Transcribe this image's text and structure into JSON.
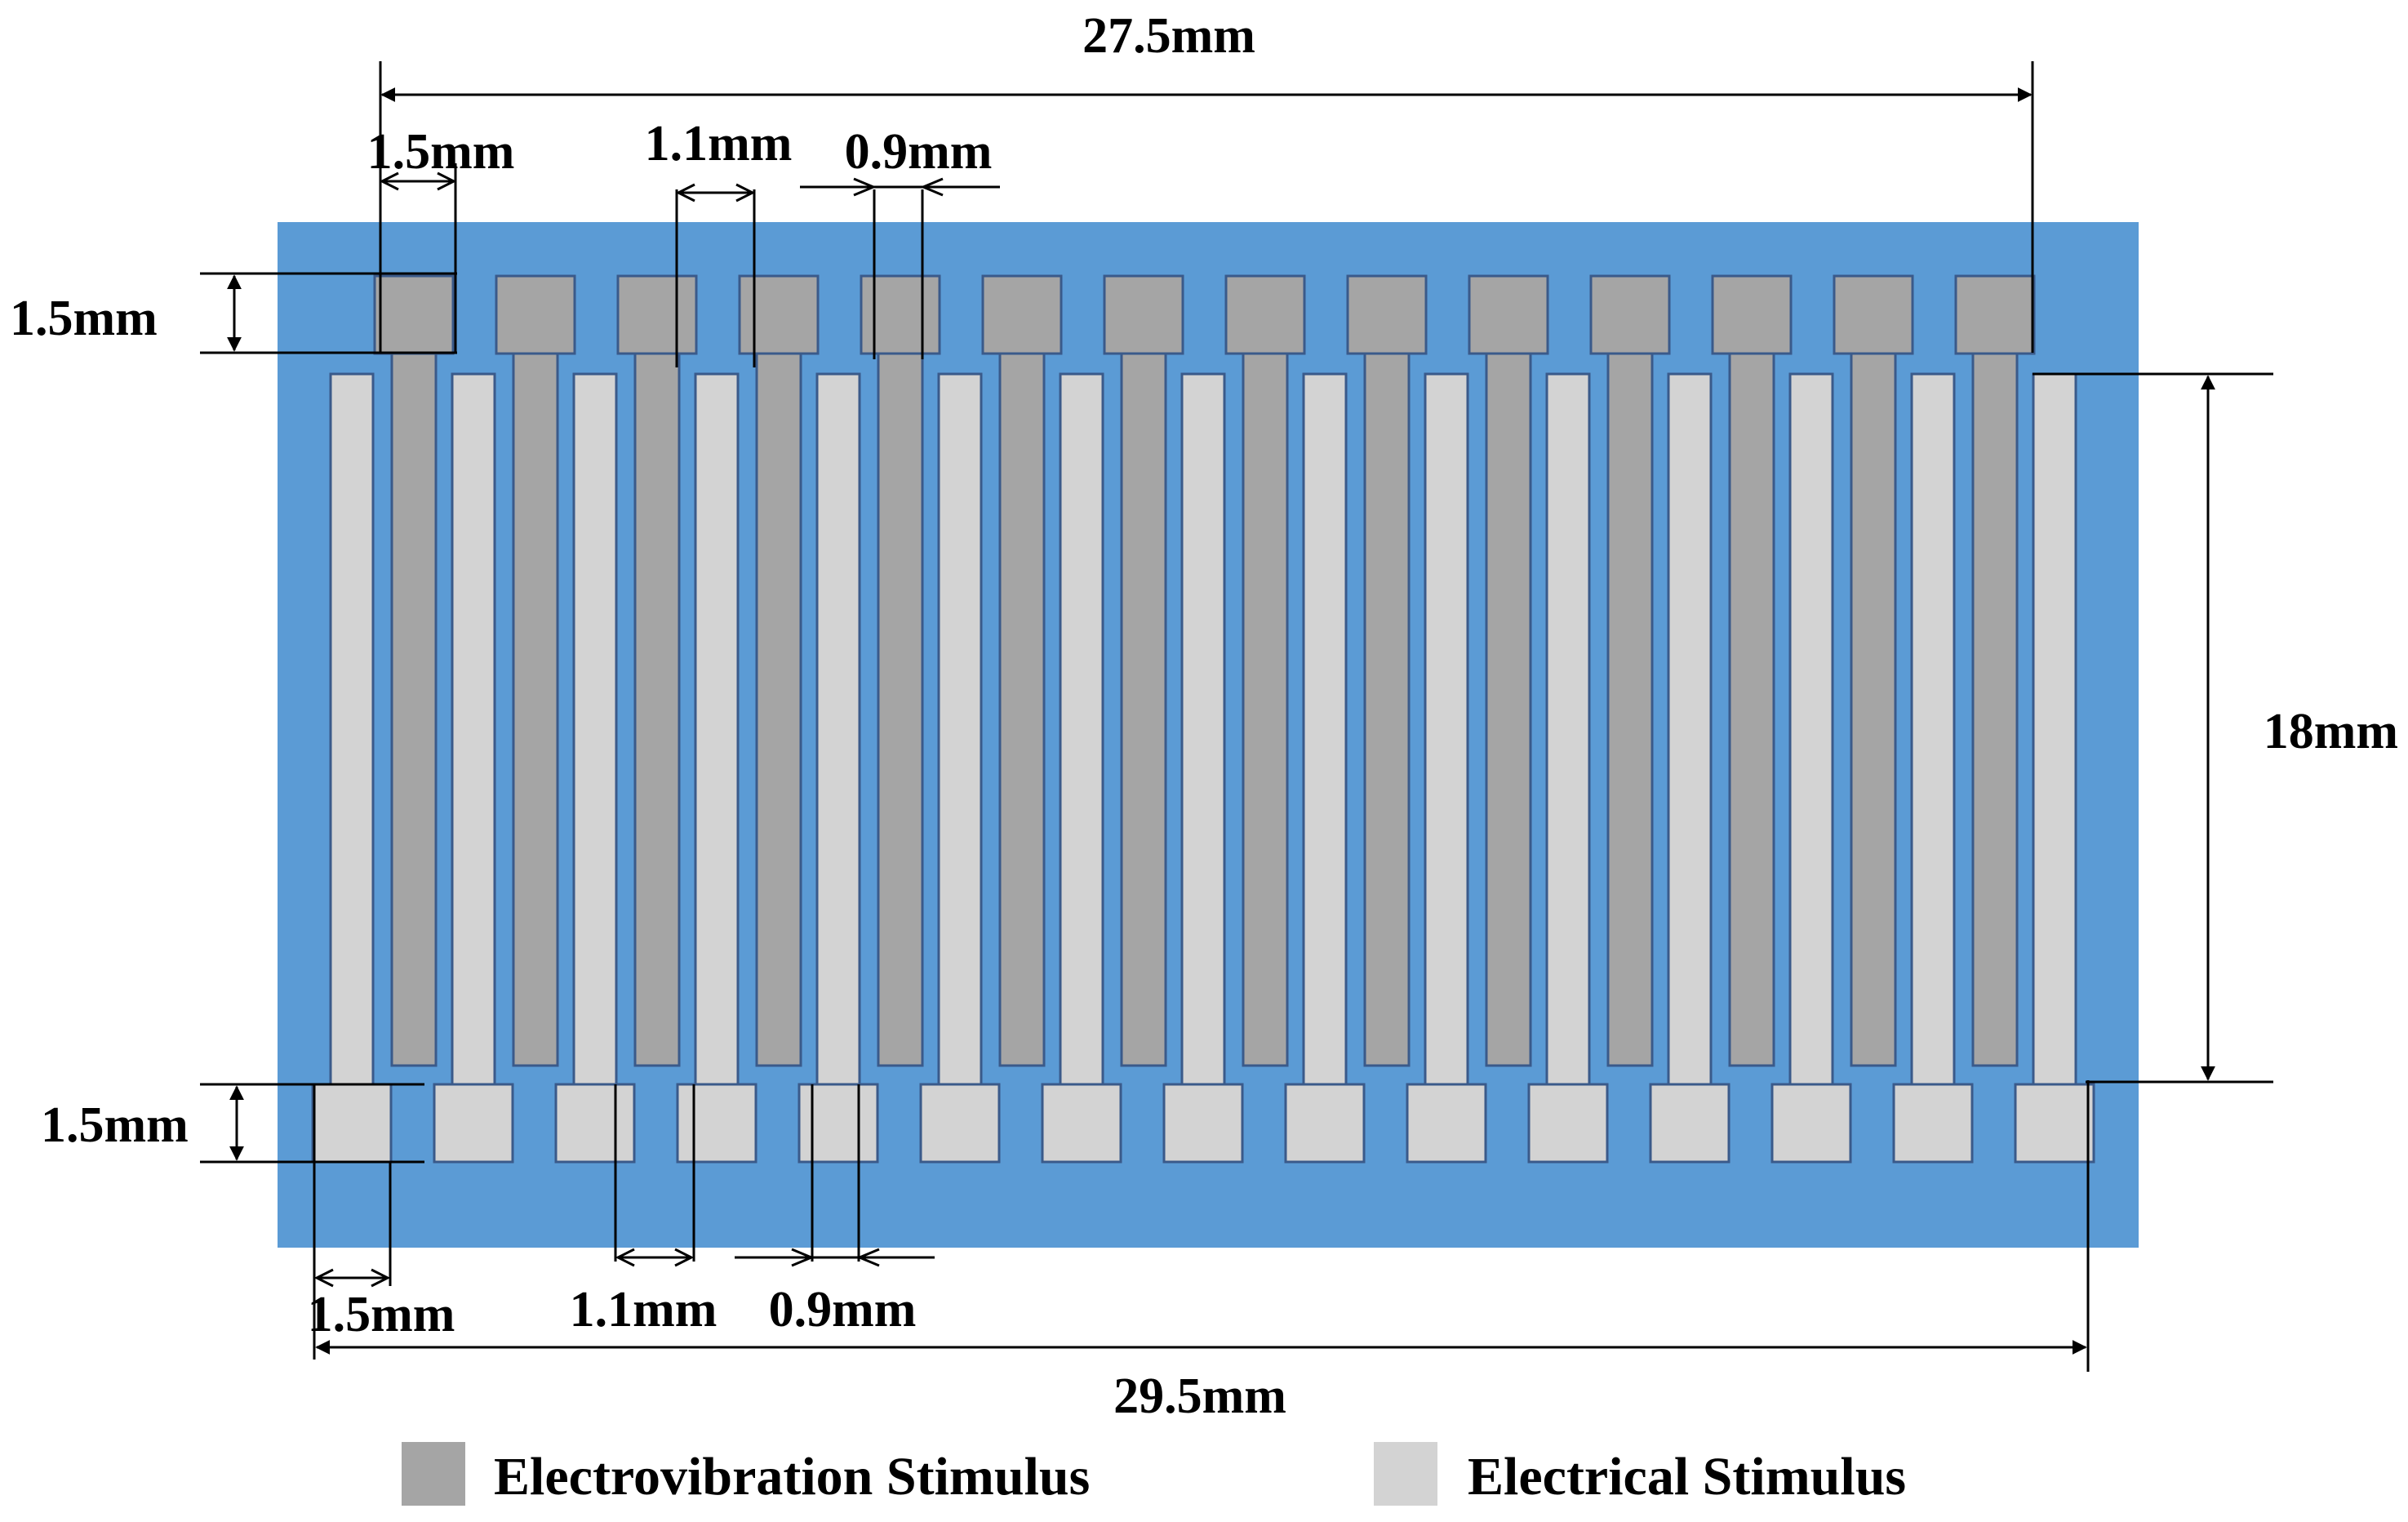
{
  "diagram": {
    "dimensions": {
      "top_total": "27.5mm",
      "bottom_total": "29.5mm",
      "height": "18mm",
      "top_pad_height": "1.5mm",
      "bottom_pad_height": "1.5mm",
      "top_pad_width": "1.5mm",
      "top_gap": "1.1mm",
      "top_pitch": "0.9mm",
      "bottom_pad_width": "1.5mm",
      "bottom_gap": "1.1mm",
      "bottom_pitch": "0.9mm"
    },
    "electrode_count": {
      "electrovibration": 14,
      "electrical": 15
    },
    "colors": {
      "substrate": "#5b9bd5",
      "electrovibration": "#a5a5a5",
      "electrical": "#d3d3d3",
      "outline": "#3a5a8a"
    }
  },
  "legend": {
    "electrovibration": "Electrovibration Stimulus",
    "electrical": "Electrical Stimulus"
  }
}
